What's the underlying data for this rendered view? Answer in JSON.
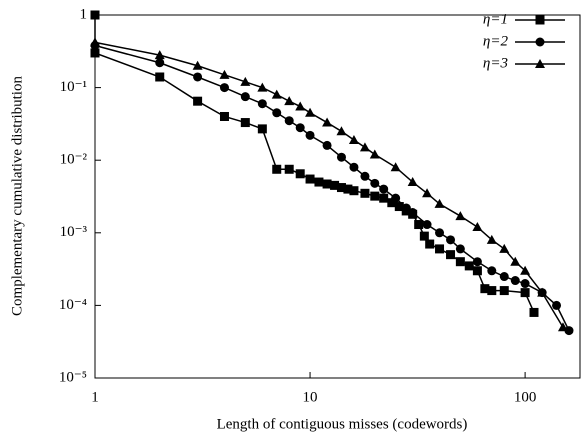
{
  "chart_data": {
    "type": "line",
    "xlabel": "Length of contiguous misses (codewords)",
    "ylabel": "Complementary cumulative distribution",
    "xscale": "log",
    "yscale": "log",
    "xlim": [
      1,
      180
    ],
    "ylim": [
      1e-05,
      1
    ],
    "xticks": [
      1,
      10,
      100
    ],
    "yticks": [
      1,
      {
        "value": 0.1,
        "label": "10⁻¹"
      },
      {
        "value": 0.01,
        "label": "10⁻²"
      },
      {
        "value": 0.001,
        "label": "10⁻³"
      },
      {
        "value": 0.0001,
        "label": "10⁻⁴"
      },
      {
        "value": 1e-05,
        "label": "10⁻⁵"
      }
    ],
    "legend": "upper right",
    "series": [
      {
        "name": "η=1",
        "color": "#000000",
        "marker": "square",
        "x": [
          1,
          1,
          2,
          3,
          4,
          5,
          6,
          7,
          8,
          9,
          10,
          11,
          12,
          13,
          14,
          15,
          16,
          18,
          20,
          22,
          24,
          26,
          28,
          30,
          32,
          34,
          36,
          40,
          45,
          50,
          55,
          60,
          65,
          70,
          80,
          100,
          110
        ],
        "values": [
          1,
          0.3,
          0.14,
          0.065,
          0.04,
          0.033,
          0.027,
          0.0075,
          0.0075,
          0.0065,
          0.0055,
          0.005,
          0.0047,
          0.0045,
          0.0042,
          0.004,
          0.0038,
          0.0035,
          0.0032,
          0.003,
          0.0026,
          0.0023,
          0.002,
          0.0018,
          0.0013,
          0.0009,
          0.0007,
          0.0006,
          0.0005,
          0.0004,
          0.00035,
          0.0003,
          0.00017,
          0.00016,
          0.00016,
          0.00015,
          8e-05
        ]
      },
      {
        "name": "η=2",
        "color": "#000000",
        "marker": "circle",
        "x": [
          1,
          2,
          3,
          4,
          5,
          6,
          7,
          8,
          9,
          10,
          12,
          14,
          16,
          18,
          20,
          22,
          25,
          28,
          30,
          35,
          40,
          45,
          50,
          60,
          70,
          80,
          90,
          100,
          120,
          140,
          160
        ],
        "values": [
          0.38,
          0.22,
          0.14,
          0.1,
          0.075,
          0.06,
          0.045,
          0.035,
          0.028,
          0.022,
          0.016,
          0.011,
          0.008,
          0.006,
          0.0048,
          0.004,
          0.003,
          0.0022,
          0.0019,
          0.0013,
          0.001,
          0.0008,
          0.0006,
          0.0004,
          0.0003,
          0.00025,
          0.00022,
          0.0002,
          0.00015,
          0.0001,
          4.5e-05
        ]
      },
      {
        "name": "η=3",
        "color": "#000000",
        "marker": "triangle",
        "x": [
          1,
          2,
          3,
          4,
          5,
          6,
          7,
          8,
          9,
          10,
          12,
          14,
          16,
          18,
          20,
          25,
          30,
          35,
          40,
          50,
          60,
          70,
          80,
          90,
          100,
          120,
          150
        ],
        "values": [
          0.42,
          0.28,
          0.2,
          0.15,
          0.12,
          0.1,
          0.08,
          0.065,
          0.055,
          0.045,
          0.033,
          0.025,
          0.019,
          0.015,
          0.012,
          0.008,
          0.005,
          0.0035,
          0.0025,
          0.0017,
          0.0012,
          0.0008,
          0.0006,
          0.0004,
          0.0003,
          0.00015,
          5e-05
        ]
      }
    ]
  }
}
